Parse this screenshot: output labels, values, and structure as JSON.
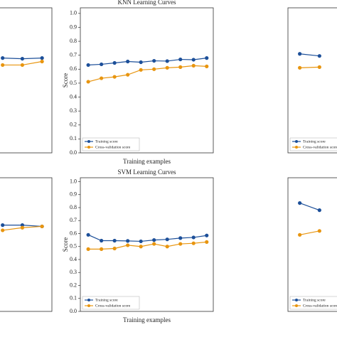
{
  "chart_data": [
    {
      "type": "line",
      "x": [
        8,
        9,
        10
      ],
      "xlim": [
        0.4,
        10.5
      ],
      "ylim": [
        0,
        1.04
      ],
      "series": [
        {
          "name": "Training score",
          "color": "#1c4f99",
          "values": [
            0.68,
            0.675,
            0.68
          ]
        },
        {
          "name": "Cross-validation score",
          "color": "#e8950f",
          "values": [
            0.63,
            0.63,
            0.655
          ]
        }
      ]
    },
    {
      "type": "line",
      "title": "KNN Learning Curves",
      "xlabel": "Training examples",
      "ylabel": "Score",
      "x": [
        1,
        2,
        3,
        4,
        5,
        6,
        7,
        8,
        9,
        10
      ],
      "xlim": [
        0.4,
        10.5
      ],
      "ylim": [
        0,
        1.04
      ],
      "yticks": [
        {
          "value": 0,
          "label": "0.0"
        },
        0.1,
        0.2,
        0.3,
        0.4,
        0.5,
        0.6,
        0.7,
        0.8,
        0.9,
        {
          "value": 1,
          "label": "1.0"
        }
      ],
      "series": [
        {
          "name": "Training score",
          "color": "#1c4f99",
          "values": [
            0.63,
            0.635,
            0.645,
            0.655,
            0.65,
            0.66,
            0.658,
            0.67,
            0.668,
            0.68
          ]
        },
        {
          "name": "Cross-validation score",
          "color": "#e8950f",
          "values": [
            0.51,
            0.535,
            0.545,
            0.56,
            0.595,
            0.6,
            0.61,
            0.615,
            0.625,
            0.62
          ]
        }
      ]
    },
    {
      "type": "line",
      "x": [
        1,
        2
      ],
      "xlim": [
        0.4,
        10.5
      ],
      "ylim": [
        0,
        1.04
      ],
      "series": [
        {
          "name": "Training score",
          "color": "#1c4f99",
          "values": [
            0.71,
            0.695
          ]
        },
        {
          "name": "Cross-validation score",
          "color": "#e8950f",
          "values": [
            0.61,
            0.615
          ]
        }
      ]
    },
    {
      "type": "line",
      "x": [
        8,
        9,
        10
      ],
      "xlim": [
        0.4,
        10.5
      ],
      "ylim": [
        0,
        1.03
      ],
      "series": [
        {
          "name": "Training score",
          "color": "#1c4f99",
          "values": [
            0.665,
            0.665,
            0.655
          ]
        },
        {
          "name": "Cross-validation score",
          "color": "#e8950f",
          "values": [
            0.625,
            0.645,
            0.655
          ]
        }
      ]
    },
    {
      "type": "line",
      "title": "SVM Learning Curves",
      "xlabel": "Training examples",
      "ylabel": "Score",
      "x": [
        1,
        2,
        3,
        4,
        5,
        6,
        7,
        8,
        9,
        10
      ],
      "xlim": [
        0.4,
        10.5
      ],
      "ylim": [
        0,
        1.03
      ],
      "yticks": [
        {
          "value": 0,
          "label": "0.0"
        },
        0.1,
        0.2,
        0.3,
        0.4,
        0.5,
        0.6,
        0.7,
        0.8,
        0.9,
        {
          "value": 1,
          "label": "1.0"
        }
      ],
      "series": [
        {
          "name": "Training score",
          "color": "#1c4f99",
          "values": [
            0.59,
            0.545,
            0.545,
            0.543,
            0.54,
            0.55,
            0.555,
            0.565,
            0.57,
            0.585
          ]
        },
        {
          "name": "Cross-validation score",
          "color": "#e8950f",
          "values": [
            0.48,
            0.48,
            0.485,
            0.51,
            0.5,
            0.52,
            0.5,
            0.52,
            0.525,
            0.535
          ]
        }
      ]
    },
    {
      "type": "line",
      "x": [
        1,
        2
      ],
      "xlim": [
        0.4,
        10.5
      ],
      "ylim": [
        0,
        1.03
      ],
      "series": [
        {
          "name": "Training score",
          "color": "#1c4f99",
          "values": [
            0.835,
            0.78
          ]
        },
        {
          "name": "Cross-validation score",
          "color": "#e8950f",
          "values": [
            0.59,
            0.62
          ]
        }
      ]
    }
  ]
}
